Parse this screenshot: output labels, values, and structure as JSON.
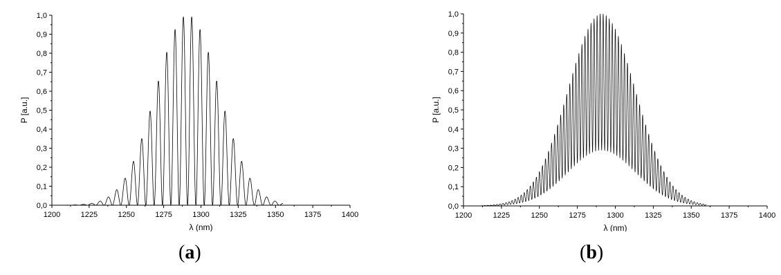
{
  "chart_data": [
    {
      "type": "line",
      "panel": "a",
      "xlabel": "λ (nm)",
      "ylabel": "P [a.u.]",
      "xlim": [
        1200,
        1400
      ],
      "ylim": [
        0,
        1.0
      ],
      "x_ticks": [
        1200,
        1225,
        1250,
        1275,
        1300,
        1325,
        1350,
        1375,
        1400
      ],
      "x_tick_labels": [
        "1200",
        "1225",
        "1250",
        "1275",
        "1300",
        "1325",
        "1350",
        "1375",
        "1400"
      ],
      "y_ticks": [
        0,
        0.1,
        0.2,
        0.3,
        0.4,
        0.5,
        0.6,
        0.7,
        0.8,
        0.9,
        1.0
      ],
      "y_tick_labels": [
        "0,0",
        "0,1",
        "0,2",
        "0,3",
        "0,4",
        "0,5",
        "0,6",
        "0,7",
        "0,8",
        "0,9",
        "1,0"
      ],
      "grid": false,
      "series": [
        {
          "envelope": "gaussian",
          "center_nm": 1291,
          "fwhm_nm": 50,
          "fringe_period_nm": 5.6,
          "peak_value": 1.0,
          "min_fraction_of_envelope": 0.0,
          "x_range_nm": [
            1210,
            1355
          ]
        }
      ]
    },
    {
      "type": "line",
      "panel": "b",
      "xlabel": "λ (nm)",
      "ylabel": "P [a.u.]",
      "xlim": [
        1200,
        1400
      ],
      "ylim": [
        0,
        1.0
      ],
      "x_ticks": [
        1200,
        1225,
        1250,
        1275,
        1300,
        1325,
        1350,
        1375,
        1400
      ],
      "x_tick_labels": [
        "1200",
        "1225",
        "1250",
        "1275",
        "1300",
        "1325",
        "1350",
        "1375",
        "1400"
      ],
      "y_ticks": [
        0,
        0.1,
        0.2,
        0.3,
        0.4,
        0.5,
        0.6,
        0.7,
        0.8,
        0.9,
        1.0
      ],
      "y_tick_labels": [
        "0,0",
        "0,1",
        "0,2",
        "0,3",
        "0,4",
        "0,5",
        "0,6",
        "0,7",
        "0,8",
        "0,9",
        "1,0"
      ],
      "grid": false,
      "series": [
        {
          "envelope": "gaussian",
          "center_nm": 1291,
          "fwhm_nm": 52,
          "fringe_period_nm": 2.0,
          "peak_value": 1.0,
          "min_fraction_of_envelope": 0.29,
          "x_range_nm": [
            1212,
            1360
          ]
        }
      ]
    }
  ],
  "labels": {
    "a": "a",
    "b": "b"
  }
}
